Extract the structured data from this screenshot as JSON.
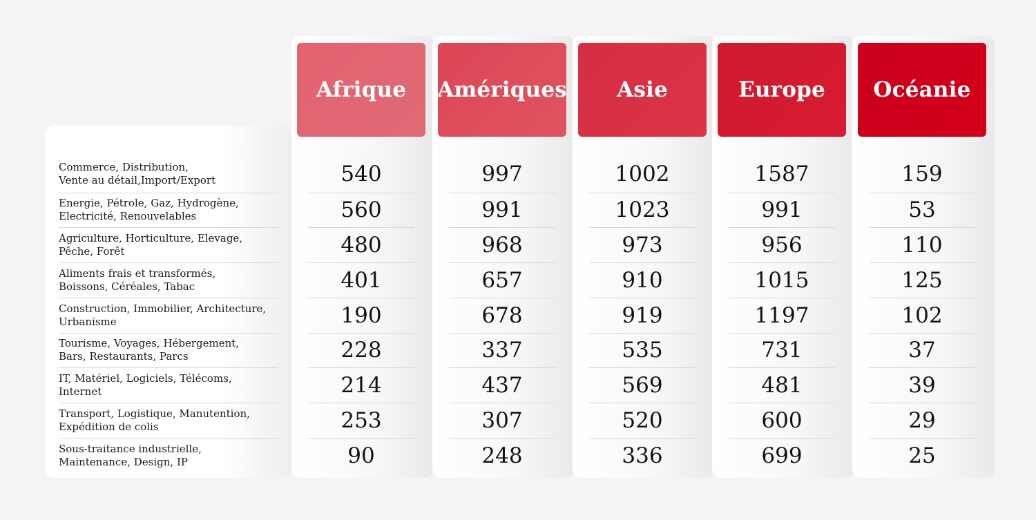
{
  "chart_data": {
    "type": "table",
    "title": "",
    "columns": [
      "Afrique",
      "Amériques",
      "Asie",
      "Europe",
      "Océanie"
    ],
    "header_colors": [
      [
        "#e46270",
        "#df6a76"
      ],
      [
        "#dc4557",
        "#e05461"
      ],
      [
        "#d62d42",
        "#da3446"
      ],
      [
        "#ce1a30",
        "#d81b30"
      ],
      [
        "#c9001e",
        "#d40019"
      ]
    ],
    "rows": [
      {
        "label": [
          "Commerce, Distribution,",
          "Vente au détail,Import/Export"
        ],
        "values": [
          540,
          997,
          1002,
          1587,
          159
        ]
      },
      {
        "label": [
          "Energie, Pétrole, Gaz, Hydrogène,",
          "Electricité, Renouvelables"
        ],
        "values": [
          560,
          991,
          1023,
          991,
          53
        ]
      },
      {
        "label": [
          "Agriculture, Horticulture, Elevage,",
          "Pêche, Forêt"
        ],
        "values": [
          480,
          968,
          973,
          956,
          110
        ]
      },
      {
        "label": [
          "Aliments frais et transformés,",
          "Boissons, Céréales, Tabac"
        ],
        "values": [
          401,
          657,
          910,
          1015,
          125
        ]
      },
      {
        "label": [
          "Construction, Immobilier, Architecture,",
          "Urbanisme"
        ],
        "values": [
          190,
          678,
          919,
          1197,
          102
        ]
      },
      {
        "label": [
          "Tourisme, Voyages, Hébergement,",
          "Bars, Restaurants, Parcs"
        ],
        "values": [
          228,
          337,
          535,
          731,
          37
        ]
      },
      {
        "label": [
          "IT, Matériel, Logiciels, Télécoms,",
          "Internet"
        ],
        "values": [
          214,
          437,
          569,
          481,
          39
        ]
      },
      {
        "label": [
          "Transport, Logistique, Manutention,",
          "Expédition de colis"
        ],
        "values": [
          253,
          307,
          520,
          600,
          29
        ]
      },
      {
        "label": [
          "Sous-traitance industrielle,",
          "Maintenance, Design, IP"
        ],
        "values": [
          90,
          248,
          336,
          699,
          25
        ]
      }
    ]
  }
}
